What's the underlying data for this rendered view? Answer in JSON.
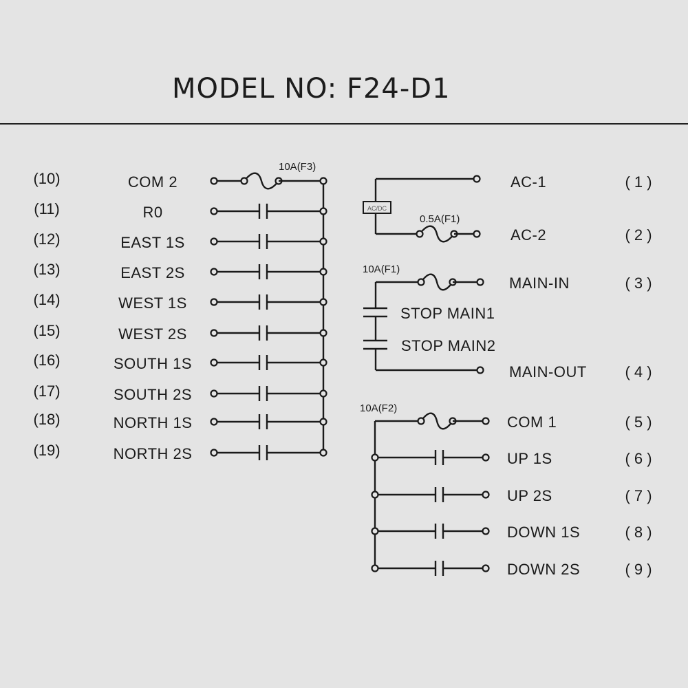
{
  "title": "MODEL NO: F24-D1",
  "left": {
    "fuse_label": "10A(F3)",
    "rows": [
      {
        "num": "(10)",
        "label": "COM 2",
        "type": "fuse"
      },
      {
        "num": "(11)",
        "label": "R0",
        "type": "contact"
      },
      {
        "num": "(12)",
        "label": "EAST 1S",
        "type": "contact"
      },
      {
        "num": "(13)",
        "label": "EAST 2S",
        "type": "contact"
      },
      {
        "num": "(14)",
        "label": "WEST 1S",
        "type": "contact"
      },
      {
        "num": "(15)",
        "label": "WEST 2S",
        "type": "contact"
      },
      {
        "num": "(16)",
        "label": "SOUTH 1S",
        "type": "contact"
      },
      {
        "num": "(17)",
        "label": "SOUTH 2S",
        "type": "contact"
      },
      {
        "num": "(18)",
        "label": "NORTH 1S",
        "type": "contact"
      },
      {
        "num": "(19)",
        "label": "NORTH 2S",
        "type": "contact"
      }
    ]
  },
  "power": {
    "psu_label": "AC/DC",
    "fuse_label": "0.5A(F1)",
    "ac1": {
      "num": "( 1 )",
      "label": "AC-1"
    },
    "ac2": {
      "num": "( 2 )",
      "label": "AC-2"
    }
  },
  "main": {
    "fuse_label": "10A(F1)",
    "stop1": "STOP MAIN1",
    "stop2": "STOP MAIN2",
    "main_in": {
      "num": "( 3 )",
      "label": "MAIN-IN"
    },
    "main_out": {
      "num": "( 4 )",
      "label": "MAIN-OUT"
    }
  },
  "right": {
    "fuse_label": "10A(F2)",
    "rows": [
      {
        "num": "( 5 )",
        "label": "COM 1",
        "type": "fuse"
      },
      {
        "num": "( 6 )",
        "label": "UP  1S",
        "type": "contact"
      },
      {
        "num": "( 7 )",
        "label": "UP  2S",
        "type": "contact"
      },
      {
        "num": "( 8 )",
        "label": "DOWN 1S",
        "type": "contact"
      },
      {
        "num": "( 9 )",
        "label": "DOWN 2S",
        "type": "contact"
      }
    ]
  }
}
